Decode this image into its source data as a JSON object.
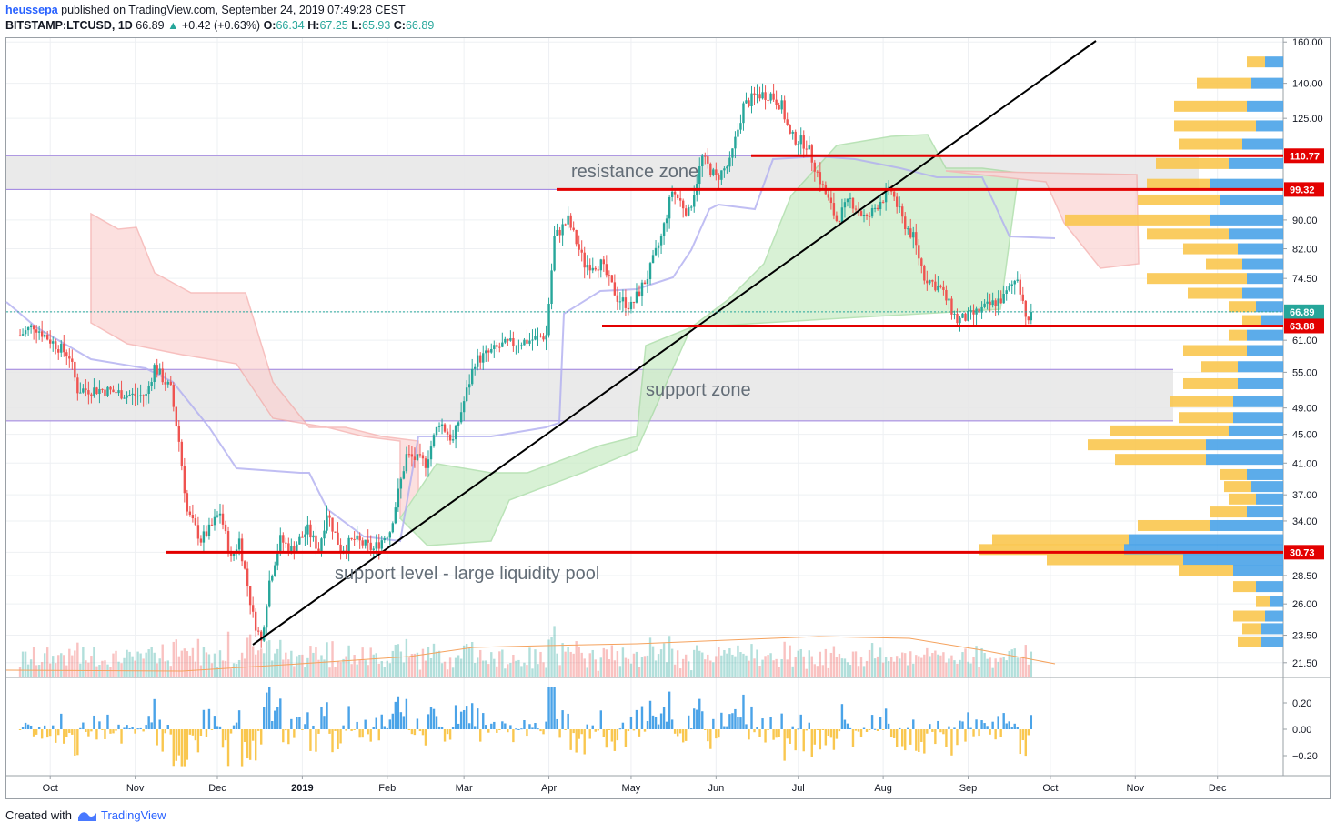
{
  "header": {
    "user": "heussepa",
    "published": " published on TradingView.com, September 24, 2019 07:49:28 CEST",
    "symbol": "BITSTAMP:LTCUSD, 1D",
    "last": "66.89",
    "change_arrow": "▲",
    "change": "+0.42 (+0.63%)",
    "o_label": "O:",
    "o": "66.34",
    "h_label": "H:",
    "h": "67.25",
    "l_label": "L:",
    "l": "65.93",
    "c_label": "C:",
    "c": "66.89"
  },
  "footer": {
    "created_with": "Created with",
    "brand": "TradingView",
    "logo_icon": "tradingview-logo-icon"
  },
  "colors": {
    "up": "#26a69a",
    "down": "#ef5350",
    "level": "#e30000",
    "zone": "#e6e6e6",
    "kumo_up": "#c8ecc4",
    "kumo_down": "#fbd3d2",
    "kijun": "#b0aef0",
    "vp_up": "#4aa3e8",
    "vp_down": "#f9c74f",
    "trendline": "#000000"
  },
  "chart_data": {
    "type": "candlestick",
    "symbol": "BITSTAMP:LTCUSD",
    "interval": "1D",
    "price_axis": {
      "ticks": [
        "160.00",
        "140.00",
        "125.00",
        "110.77",
        "99.32",
        "90.00",
        "82.00",
        "74.50",
        "66.89",
        "63.88",
        "61.00",
        "55.00",
        "49.00",
        "45.00",
        "41.00",
        "37.00",
        "34.00",
        "30.73",
        "28.50",
        "26.00",
        "23.50",
        "21.50"
      ],
      "scale": "log",
      "range": [
        20.5,
        162
      ]
    },
    "time_axis": [
      "Oct",
      "Nov",
      "Dec",
      "2019",
      "Feb",
      "Mar",
      "Apr",
      "May",
      "Jun",
      "Jul",
      "Aug",
      "Sep",
      "Oct",
      "Nov",
      "Dec"
    ],
    "osc_axis": [
      "0.20",
      "0.00",
      "−0.20"
    ],
    "price_labels": [
      {
        "value": "110.77",
        "color": "#e30000"
      },
      {
        "value": "99.32",
        "color": "#e30000"
      },
      {
        "value": "66.89",
        "color": "#26a69a"
      },
      {
        "value": "63.88",
        "color": "#e30000"
      },
      {
        "value": "30.73",
        "color": "#e30000"
      }
    ],
    "zones": [
      {
        "label": "resistance zone",
        "low": 99.32,
        "high": 110.77
      },
      {
        "label": "support zone",
        "low": 47.0,
        "high": 55.5
      }
    ],
    "levels": [
      110.77,
      99.32,
      63.88,
      30.73
    ],
    "annotations": [
      "support level - large liquidity pool"
    ],
    "close_path": [
      [
        "2018-09-20",
        62
      ],
      [
        "2018-09-25",
        64
      ],
      [
        "2018-10-01",
        61
      ],
      [
        "2018-10-08",
        58
      ],
      [
        "2018-10-11",
        52
      ],
      [
        "2018-10-20",
        52
      ],
      [
        "2018-10-31",
        51
      ],
      [
        "2018-11-05",
        51
      ],
      [
        "2018-11-08",
        56
      ],
      [
        "2018-11-14",
        52
      ],
      [
        "2018-11-17",
        44
      ],
      [
        "2018-11-20",
        35
      ],
      [
        "2018-11-25",
        32
      ],
      [
        "2018-11-28",
        33
      ],
      [
        "2018-12-02",
        35
      ],
      [
        "2018-12-06",
        30
      ],
      [
        "2018-12-09",
        32
      ],
      [
        "2018-12-14",
        25
      ],
      [
        "2018-12-17",
        23
      ],
      [
        "2018-12-20",
        28
      ],
      [
        "2018-12-24",
        32
      ],
      [
        "2018-12-28",
        31
      ],
      [
        "2019-01-03",
        33
      ],
      [
        "2019-01-07",
        31
      ],
      [
        "2019-01-10",
        35
      ],
      [
        "2019-01-15",
        31
      ],
      [
        "2019-01-20",
        32
      ],
      [
        "2019-01-27",
        31
      ],
      [
        "2019-02-02",
        33
      ],
      [
        "2019-02-08",
        42
      ],
      [
        "2019-02-15",
        41
      ],
      [
        "2019-02-20",
        47
      ],
      [
        "2019-02-25",
        44
      ],
      [
        "2019-03-05",
        57
      ],
      [
        "2019-03-15",
        60
      ],
      [
        "2019-03-25",
        61
      ],
      [
        "2019-03-31",
        62
      ],
      [
        "2019-04-03",
        85
      ],
      [
        "2019-04-08",
        90
      ],
      [
        "2019-04-14",
        78
      ],
      [
        "2019-04-20",
        78
      ],
      [
        "2019-04-26",
        70
      ],
      [
        "2019-05-01",
        68
      ],
      [
        "2019-05-07",
        75
      ],
      [
        "2019-05-12",
        85
      ],
      [
        "2019-05-16",
        99
      ],
      [
        "2019-05-22",
        92
      ],
      [
        "2019-05-27",
        110
      ],
      [
        "2019-06-01",
        103
      ],
      [
        "2019-06-06",
        108
      ],
      [
        "2019-06-11",
        130
      ],
      [
        "2019-06-16",
        135
      ],
      [
        "2019-06-21",
        135
      ],
      [
        "2019-06-25",
        130
      ],
      [
        "2019-06-28",
        118
      ],
      [
        "2019-07-04",
        115
      ],
      [
        "2019-07-10",
        100
      ],
      [
        "2019-07-15",
        90
      ],
      [
        "2019-07-20",
        96
      ],
      [
        "2019-07-26",
        90
      ],
      [
        "2019-07-31",
        96
      ],
      [
        "2019-08-04",
        99
      ],
      [
        "2019-08-08",
        90
      ],
      [
        "2019-08-12",
        85
      ],
      [
        "2019-08-16",
        75
      ],
      [
        "2019-08-22",
        72
      ],
      [
        "2019-08-28",
        65
      ],
      [
        "2019-09-02",
        66
      ],
      [
        "2019-09-08",
        68
      ],
      [
        "2019-09-14",
        70
      ],
      [
        "2019-09-19",
        75
      ],
      [
        "2019-09-23",
        64
      ],
      [
        "2019-09-24",
        66.89
      ]
    ]
  }
}
